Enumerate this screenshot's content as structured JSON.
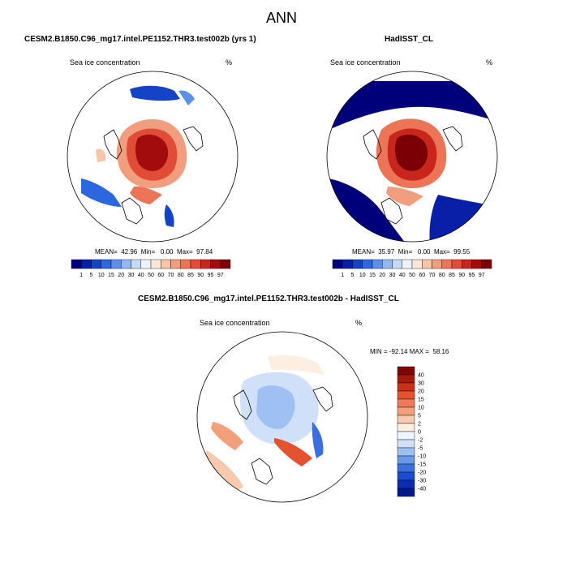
{
  "page_title": "ANN",
  "palette": {
    "land_border": "#000000",
    "ocean_background": "#ffffff",
    "colorbar_colors": [
      "#00007a",
      "#0a1fa8",
      "#1543c8",
      "#2c67df",
      "#5b8fe8",
      "#93b8f0",
      "#c4daf5",
      "#eef3fb",
      "#fbe6dc",
      "#f6c5aa",
      "#f19e7e",
      "#ec7558",
      "#e04c36",
      "#c8261c",
      "#a30c0d",
      "#7a0006"
    ],
    "diff_colors": [
      "#001a8c",
      "#0b2db2",
      "#1a4bd1",
      "#3a6fe0",
      "#6a98ea",
      "#9fc0f3",
      "#cfe0f8",
      "#eef5ff",
      "#fdeee2",
      "#f7c9ae",
      "#f2a07c",
      "#ee7a57",
      "#e3532f",
      "#c83117",
      "#a51a0a",
      "#7f0700"
    ]
  },
  "chart_data": [
    {
      "type": "heatmap",
      "projection": "north polar stereographic",
      "title": "CESM2.B1850.C96_mg17.intel.PE1152.THR3.test002b (yrs 1)",
      "left_label": "Sea ice concentration",
      "unit": "%",
      "stats": {
        "mean": "42.96",
        "min": "0.00",
        "max": "97.84"
      },
      "stats_text": "MEAN=  42.96  Min=   0.00  Max=  97.84",
      "colorbar_ticks": [
        "1",
        "5",
        "10",
        "15",
        "20",
        "30",
        "40",
        "50",
        "60",
        "70",
        "80",
        "85",
        "90",
        "95",
        "97"
      ]
    },
    {
      "type": "heatmap",
      "projection": "north polar stereographic",
      "title": "HadISST_CL",
      "left_label": "Sea ice concentration",
      "unit": "%",
      "stats": {
        "mean": "35.97",
        "min": "0.00",
        "max": "99.55"
      },
      "stats_text": "MEAN=  35.97  Min=   0.00  Max=  99.55",
      "colorbar_ticks": [
        "1",
        "5",
        "10",
        "15",
        "20",
        "30",
        "40",
        "50",
        "60",
        "70",
        "80",
        "85",
        "90",
        "95",
        "97"
      ]
    },
    {
      "type": "heatmap",
      "projection": "north polar stereographic",
      "title": "CESM2.B1850.C96_mg17.intel.PE1152.THR3.test002b - HadISST_CL",
      "left_label": "Sea ice concentration",
      "unit": "%",
      "stats": {
        "min": "-92.14",
        "max": "58.16"
      },
      "stats_text": "MIN = -92.14 MAX =  58.16",
      "colorbar_ticks": [
        "40",
        "30",
        "20",
        "15",
        "10",
        "5",
        "2",
        "0",
        "-2",
        "-5",
        "-10",
        "-15",
        "-20",
        "-30",
        "-40"
      ]
    }
  ]
}
